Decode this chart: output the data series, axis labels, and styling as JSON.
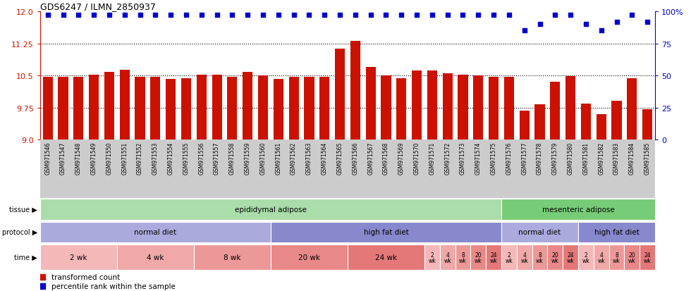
{
  "title": "GDS6247 / ILMN_2850937",
  "samples": [
    "GSM971546",
    "GSM971547",
    "GSM971548",
    "GSM971549",
    "GSM971550",
    "GSM971551",
    "GSM971552",
    "GSM971553",
    "GSM971554",
    "GSM971555",
    "GSM971556",
    "GSM971557",
    "GSM971558",
    "GSM971559",
    "GSM971560",
    "GSM971561",
    "GSM971562",
    "GSM971563",
    "GSM971564",
    "GSM971565",
    "GSM971566",
    "GSM971567",
    "GSM971568",
    "GSM971569",
    "GSM971570",
    "GSM971571",
    "GSM971572",
    "GSM971573",
    "GSM971574",
    "GSM971575",
    "GSM971576",
    "GSM971577",
    "GSM971578",
    "GSM971579",
    "GSM971580",
    "GSM971581",
    "GSM971582",
    "GSM971583",
    "GSM971584",
    "GSM971585"
  ],
  "bar_values": [
    10.47,
    10.47,
    10.47,
    10.52,
    10.58,
    10.63,
    10.46,
    10.47,
    10.42,
    10.44,
    10.52,
    10.52,
    10.47,
    10.59,
    10.5,
    10.42,
    10.46,
    10.47,
    10.47,
    11.13,
    11.3,
    10.7,
    10.5,
    10.43,
    10.61,
    10.62,
    10.55,
    10.51,
    10.5,
    10.47,
    10.47,
    9.68,
    9.83,
    10.36,
    10.49,
    9.84,
    9.6,
    9.9,
    10.43,
    9.71
  ],
  "percentile_values": [
    97,
    97,
    97,
    97,
    97,
    97,
    97,
    97,
    97,
    97,
    97,
    97,
    97,
    97,
    97,
    97,
    97,
    97,
    97,
    97,
    97,
    97,
    97,
    97,
    97,
    97,
    97,
    97,
    97,
    97,
    97,
    85,
    90,
    97,
    97,
    90,
    85,
    92,
    97,
    92
  ],
  "bar_color": "#cc1100",
  "dot_color": "#0000cc",
  "ylim_left": [
    9.0,
    12.0
  ],
  "ylim_right": [
    0,
    100
  ],
  "yticks_left": [
    9.0,
    9.75,
    10.5,
    11.25,
    12.0
  ],
  "yticks_right": [
    0,
    25,
    50,
    75,
    100
  ],
  "hlines": [
    9.75,
    10.5,
    11.25
  ],
  "tissue_groups": [
    {
      "label": "epididymal adipose",
      "start": 0,
      "end": 29,
      "color": "#aaddaa"
    },
    {
      "label": "mesenteric adipose",
      "start": 30,
      "end": 39,
      "color": "#77cc77"
    }
  ],
  "protocol_groups": [
    {
      "label": "normal diet",
      "start": 0,
      "end": 14,
      "color": "#aaaadd"
    },
    {
      "label": "high fat diet",
      "start": 15,
      "end": 29,
      "color": "#8888cc"
    },
    {
      "label": "normal diet",
      "start": 30,
      "end": 34,
      "color": "#aaaadd"
    },
    {
      "label": "high fat diet",
      "start": 35,
      "end": 39,
      "color": "#8888cc"
    }
  ],
  "time_groups_large": [
    {
      "label": "2 wk",
      "start": 0,
      "end": 4,
      "color": "#f4b8b8"
    },
    {
      "label": "4 wk",
      "start": 5,
      "end": 9,
      "color": "#f0a8a8"
    },
    {
      "label": "8 wk",
      "start": 10,
      "end": 14,
      "color": "#ec9898"
    },
    {
      "label": "20 wk",
      "start": 15,
      "end": 19,
      "color": "#e88888"
    },
    {
      "label": "24 wk",
      "start": 20,
      "end": 24,
      "color": "#e47878"
    }
  ],
  "time_groups_small": [
    {
      "label": "2\nwk",
      "start": 25,
      "end": 25,
      "color": "#f4b8b8"
    },
    {
      "label": "4\nwk",
      "start": 26,
      "end": 26,
      "color": "#f0a8a8"
    },
    {
      "label": "8\nwk",
      "start": 27,
      "end": 27,
      "color": "#ec9898"
    },
    {
      "label": "20\nwk",
      "start": 28,
      "end": 28,
      "color": "#e88888"
    },
    {
      "label": "24\nwk",
      "start": 29,
      "end": 29,
      "color": "#e47878"
    },
    {
      "label": "2\nwk",
      "start": 30,
      "end": 30,
      "color": "#f4b8b8"
    },
    {
      "label": "4\nwk",
      "start": 31,
      "end": 31,
      "color": "#f0a8a8"
    },
    {
      "label": "8\nwk",
      "start": 32,
      "end": 32,
      "color": "#ec9898"
    },
    {
      "label": "20\nwk",
      "start": 33,
      "end": 33,
      "color": "#e88888"
    },
    {
      "label": "24\nwk",
      "start": 34,
      "end": 34,
      "color": "#e47878"
    },
    {
      "label": "2\nwk",
      "start": 35,
      "end": 35,
      "color": "#f4b8b8"
    },
    {
      "label": "4\nwk",
      "start": 36,
      "end": 36,
      "color": "#f0a8a8"
    },
    {
      "label": "8\nwk",
      "start": 37,
      "end": 37,
      "color": "#ec9898"
    },
    {
      "label": "20\nwk",
      "start": 38,
      "end": 38,
      "color": "#e88888"
    },
    {
      "label": "24\nwk",
      "start": 39,
      "end": 39,
      "color": "#e47878"
    }
  ],
  "xticklabel_bg": "#cccccc",
  "background_color": "#ffffff"
}
